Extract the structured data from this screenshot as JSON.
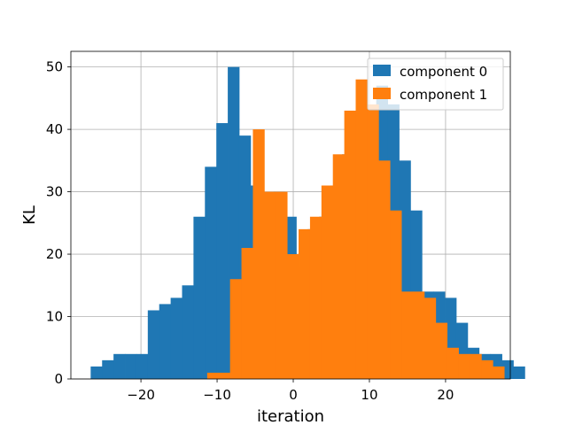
{
  "chart_data": {
    "type": "bar",
    "title": "",
    "xlabel": "iteration",
    "ylabel": "KL",
    "xlim": [
      -29.2,
      28.5
    ],
    "ylim": [
      0,
      52.5
    ],
    "x_ticks": [
      -20,
      -10,
      0,
      10,
      20
    ],
    "x_tick_labels": [
      "−20",
      "−10",
      "0",
      "10",
      "20"
    ],
    "y_ticks": [
      0,
      10,
      20,
      30,
      40,
      50
    ],
    "y_tick_labels": [
      "0",
      "10",
      "20",
      "30",
      "40",
      "50"
    ],
    "grid": true,
    "legend_position": "upper right",
    "series": [
      {
        "name": "component 0",
        "color": "#1f77b4",
        "bin_start": -26.6,
        "bin_width": 1.5,
        "values": [
          2,
          3,
          4,
          4,
          4,
          11,
          12,
          13,
          15,
          26,
          34,
          41,
          50,
          39,
          31,
          29,
          30,
          26,
          18,
          24,
          26,
          31,
          36,
          38,
          43,
          47,
          44,
          35,
          27,
          14,
          14,
          13,
          9,
          5,
          4,
          4,
          3,
          2
        ]
      },
      {
        "name": "component 1",
        "color": "#ff7f0e",
        "bin_start": -11.3,
        "bin_width": 1.5,
        "values": [
          1,
          1,
          16,
          21,
          40,
          30,
          30,
          20,
          24,
          26,
          31,
          36,
          43,
          48,
          44,
          35,
          27,
          14,
          14,
          13,
          9,
          5,
          4,
          4,
          3,
          2
        ]
      }
    ]
  }
}
